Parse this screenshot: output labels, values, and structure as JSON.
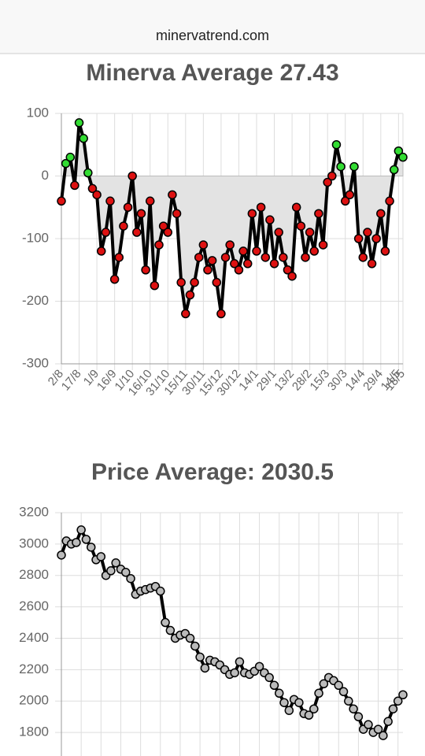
{
  "header": {
    "url": "minervatrend.com"
  },
  "chart_data": [
    {
      "type": "line",
      "title": "Minerva Average 27.43",
      "categories": [
        "2/8",
        null,
        null,
        null,
        "17/8",
        null,
        null,
        null,
        "1/9",
        null,
        null,
        null,
        "16/9",
        null,
        null,
        null,
        "1/10",
        null,
        null,
        null,
        "16/10",
        null,
        null,
        null,
        "31/10",
        null,
        null,
        null,
        "15/11",
        null,
        null,
        null,
        "30/11",
        null,
        null,
        null,
        "15/12",
        null,
        null,
        null,
        "30/12",
        null,
        null,
        null,
        "14/1",
        null,
        null,
        null,
        "29/1",
        null,
        null,
        null,
        "13/2",
        null,
        null,
        null,
        "28/2",
        null,
        null,
        null,
        "15/3",
        null,
        null,
        null,
        "30/3",
        null,
        null,
        null,
        "14/4",
        null,
        null,
        null,
        "29/4",
        null,
        null,
        null,
        "14/5",
        "18/5"
      ],
      "values": [
        -40,
        20,
        30,
        -15,
        85,
        60,
        5,
        -20,
        -30,
        -120,
        -90,
        -40,
        -165,
        -130,
        -80,
        -50,
        0,
        -90,
        -60,
        -150,
        -40,
        -175,
        -110,
        -80,
        -90,
        -30,
        -60,
        -170,
        -220,
        -190,
        -170,
        -130,
        -110,
        -150,
        -135,
        -170,
        -220,
        -130,
        -110,
        -140,
        -150,
        -120,
        -140,
        -60,
        -120,
        -50,
        -130,
        -70,
        -140,
        -90,
        -130,
        -150,
        -160,
        -50,
        -80,
        -130,
        -90,
        -120,
        -60,
        -110,
        -10,
        0,
        50,
        15,
        -40,
        -30,
        15,
        -100,
        -130,
        -90,
        -140,
        -100,
        -60,
        -120,
        -40,
        10,
        40,
        30
      ],
      "ylim": [
        -300,
        100
      ],
      "yticks": [
        -300,
        -200,
        -100,
        0,
        100
      ],
      "grid": true,
      "color": "#000000",
      "area_color": "#e3e3e3",
      "positive_color": "#33dd33",
      "negative_color": "#dd1111"
    },
    {
      "type": "line",
      "title": "Price Average: 2030.5",
      "values": [
        2930,
        3020,
        3000,
        3010,
        3090,
        3030,
        2980,
        2900,
        2920,
        2800,
        2830,
        2880,
        2840,
        2820,
        2780,
        2680,
        2700,
        2710,
        2720,
        2730,
        2700,
        2500,
        2450,
        2400,
        2420,
        2430,
        2400,
        2350,
        2280,
        2210,
        2260,
        2250,
        2230,
        2200,
        2170,
        2180,
        2250,
        2180,
        2170,
        2190,
        2220,
        2180,
        2150,
        2100,
        2050,
        1990,
        1940,
        2010,
        1990,
        1920,
        1910,
        1950,
        2050,
        2110,
        2150,
        2130,
        2100,
        2060,
        2000,
        1950,
        1900,
        1820,
        1850,
        1800,
        1820,
        1780,
        1870,
        1950,
        2000,
        2040
      ],
      "ylim": [
        1650,
        3200
      ],
      "yticks": [
        1800,
        2000,
        2200,
        2400,
        2600,
        2800,
        3000,
        3200
      ],
      "grid": true,
      "color": "#000000",
      "marker_color": "#bbbbbb"
    }
  ]
}
